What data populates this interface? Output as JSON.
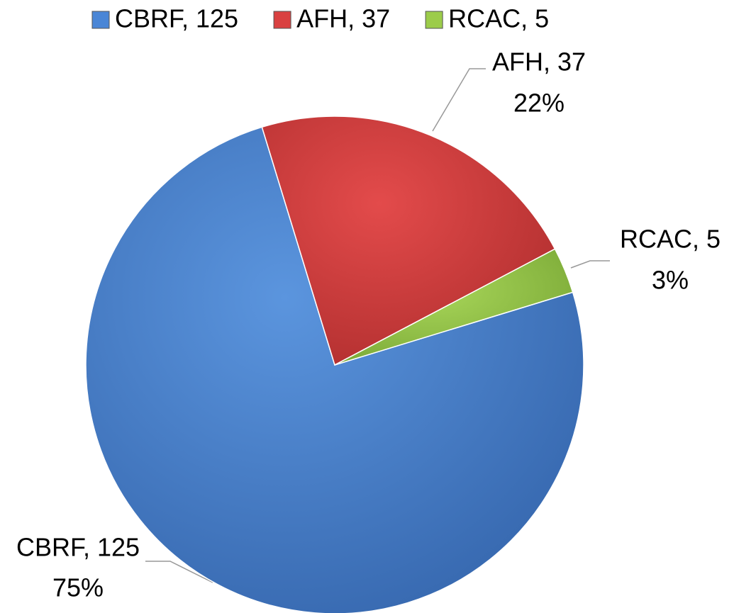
{
  "chart_data": {
    "type": "pie",
    "categories": [
      "CBRF, 125",
      "AFH, 37",
      "RCAC, 5"
    ],
    "values": [
      75,
      22,
      3
    ],
    "value_labels": [
      "75%",
      "22%",
      "3%"
    ],
    "colors": [
      "#4a86d6",
      "#d94141",
      "#9ccc4a"
    ],
    "legend": "top"
  }
}
